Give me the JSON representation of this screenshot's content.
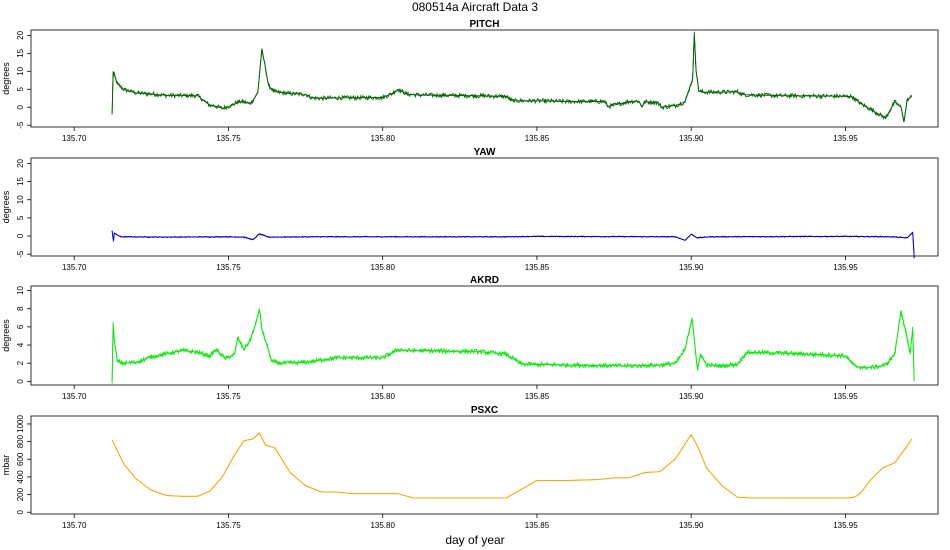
{
  "figure": {
    "title": "080514a    Aircraft Data 3",
    "xlabel": "day of year"
  },
  "chart_data": [
    {
      "type": "line",
      "title": "PITCH",
      "ylabel": "degrees",
      "color": "#006400",
      "xlim": [
        135.686,
        135.98
      ],
      "ylim": [
        -5.5,
        21.5
      ],
      "xticks": [
        135.7,
        135.75,
        135.8,
        135.85,
        135.9,
        135.95
      ],
      "xtick_labels": [
        "135.70",
        "135.75",
        "135.80",
        "135.85",
        "135.90",
        "135.95"
      ],
      "yticks": [
        -5,
        0,
        5,
        10,
        15,
        20
      ],
      "ytick_labels": [
        "-5",
        "0",
        "5",
        "10",
        "15",
        "20"
      ],
      "noise": 0.6,
      "series": [
        {
          "x": [
            135.7123,
            135.7126,
            135.713,
            135.714,
            135.716,
            135.718,
            135.72,
            135.725,
            135.73,
            135.74,
            135.744,
            135.745,
            135.748,
            135.751,
            135.753,
            135.755,
            135.757,
            135.758,
            135.7595,
            135.7608,
            135.7618,
            135.763,
            135.765,
            135.77,
            135.775,
            135.777,
            135.78,
            135.785,
            135.8,
            135.803,
            135.805,
            135.808,
            135.812,
            135.83,
            135.84,
            135.842,
            135.85,
            135.86,
            135.872,
            135.873,
            135.88,
            135.883,
            135.884,
            135.885,
            135.889,
            135.8905,
            135.895,
            135.898,
            135.9005,
            135.901,
            135.9016,
            135.9025,
            135.904,
            135.91,
            135.915,
            135.917,
            135.93,
            135.945,
            135.952,
            135.955,
            135.957,
            135.96,
            135.963,
            135.966,
            135.968,
            135.969,
            135.97,
            135.9715
          ],
          "y": [
            -2,
            10,
            9,
            6.5,
            5,
            4.5,
            4,
            3.7,
            3.3,
            3.2,
            0.5,
            0.5,
            -0.3,
            0.5,
            1.5,
            1.5,
            1,
            2,
            4,
            16,
            12,
            6,
            4.3,
            3.8,
            3.6,
            2.6,
            2.5,
            2.6,
            2.7,
            3.8,
            5,
            3.6,
            3.4,
            3.2,
            3,
            1.8,
            1.8,
            1.6,
            1.6,
            0.2,
            1.6,
            1.7,
            0.2,
            1.5,
            1.4,
            0,
            0.5,
            1.5,
            8,
            21,
            10,
            4.5,
            4.2,
            4.2,
            4.3,
            3.5,
            3.2,
            3.1,
            3,
            1,
            0,
            -1.5,
            -3,
            1.5,
            0,
            -4,
            2,
            3
          ]
        }
      ]
    },
    {
      "type": "line",
      "title": "YAW",
      "ylabel": "degrees",
      "color": "#0000cd",
      "xlim": [
        135.686,
        135.98
      ],
      "ylim": [
        -5.5,
        21.5
      ],
      "xticks": [
        135.7,
        135.75,
        135.8,
        135.85,
        135.9,
        135.95
      ],
      "xtick_labels": [
        "135.70",
        "135.75",
        "135.80",
        "135.85",
        "135.90",
        "135.95"
      ],
      "yticks": [
        -5,
        0,
        5,
        10,
        15,
        20
      ],
      "ytick_labels": [
        "-5",
        "0",
        "5",
        "10",
        "15",
        "20"
      ],
      "noise": 0.15,
      "series": [
        {
          "x": [
            135.7123,
            135.7127,
            135.713,
            135.715,
            135.73,
            135.75,
            135.755,
            135.758,
            135.76,
            135.763,
            135.78,
            135.84,
            135.85,
            135.895,
            135.898,
            135.9,
            135.902,
            135.906,
            135.95,
            135.965,
            135.97,
            135.9718,
            135.9723
          ],
          "y": [
            1.5,
            -1.5,
            0.8,
            -0.2,
            -0.3,
            -0.2,
            -0.3,
            -1,
            0.6,
            -0.3,
            -0.2,
            -0.2,
            -0.1,
            -0.2,
            -1.2,
            0.5,
            -0.5,
            -0.2,
            -0.1,
            -0.2,
            -0.5,
            1,
            -6
          ]
        }
      ]
    },
    {
      "type": "line",
      "title": "AKRD",
      "ylabel": "degrees",
      "color": "#00ee00",
      "xlim": [
        135.686,
        135.98
      ],
      "ylim": [
        -0.4,
        10.5
      ],
      "xticks": [
        135.7,
        135.75,
        135.8,
        135.85,
        135.9,
        135.95
      ],
      "xtick_labels": [
        "135.70",
        "135.75",
        "135.80",
        "135.85",
        "135.90",
        "135.95"
      ],
      "yticks": [
        0,
        2,
        4,
        6,
        8,
        10
      ],
      "ytick_labels": [
        "0",
        "2",
        "4",
        "6",
        "8",
        "10"
      ],
      "noise": 0.25,
      "series": [
        {
          "x": [
            135.7123,
            135.7126,
            135.713,
            135.714,
            135.716,
            135.72,
            135.725,
            135.735,
            135.74,
            135.744,
            135.746,
            135.749,
            135.752,
            135.753,
            135.755,
            135.757,
            135.759,
            135.76,
            135.761,
            135.7625,
            135.764,
            135.767,
            135.775,
            135.785,
            135.8,
            135.805,
            135.808,
            135.83,
            135.84,
            135.845,
            135.86,
            135.88,
            135.89,
            135.895,
            135.898,
            135.9003,
            135.9012,
            135.902,
            135.903,
            135.905,
            135.91,
            135.915,
            135.918,
            135.93,
            135.945,
            135.95,
            135.953,
            135.956,
            135.96,
            135.963,
            135.966,
            135.968,
            135.9695,
            135.971,
            135.9718,
            135.9723
          ],
          "y": [
            0,
            6.5,
            4.5,
            2.2,
            2,
            2.1,
            2.7,
            3.4,
            3.2,
            2.8,
            3.5,
            2.5,
            3,
            4.8,
            3.5,
            4.5,
            6.5,
            8,
            5.5,
            4,
            2.2,
            2,
            2.1,
            2.6,
            2.6,
            3.5,
            3.4,
            3.3,
            3,
            1.9,
            1.8,
            1.7,
            1.8,
            2,
            3.5,
            7,
            4,
            1.2,
            3,
            1.8,
            1.7,
            1.9,
            3.2,
            3.1,
            2.9,
            2.8,
            1.7,
            1.5,
            1.6,
            1.8,
            3,
            7.8,
            5.5,
            3,
            6,
            0
          ]
        }
      ]
    },
    {
      "type": "line",
      "title": "PSXC",
      "ylabel": "mbar",
      "color": "#ffa500",
      "xlim": [
        135.686,
        135.98
      ],
      "ylim": [
        -20,
        1090
      ],
      "xticks": [
        135.7,
        135.75,
        135.8,
        135.85,
        135.9,
        135.95
      ],
      "xtick_labels": [
        "135.70",
        "135.75",
        "135.80",
        "135.85",
        "135.90",
        "135.95"
      ],
      "yticks": [
        0,
        200,
        400,
        600,
        800,
        1000
      ],
      "ytick_labels": [
        "0",
        "200",
        "400",
        "600",
        "800",
        "1000"
      ],
      "noise": 0,
      "series": [
        {
          "x": [
            135.7123,
            135.716,
            135.72,
            135.725,
            135.73,
            135.735,
            135.74,
            135.744,
            135.748,
            135.752,
            135.755,
            135.758,
            135.76,
            135.762,
            135.765,
            135.77,
            135.775,
            135.78,
            135.785,
            135.79,
            135.8,
            135.805,
            135.81,
            135.82,
            135.83,
            135.84,
            135.845,
            135.85,
            135.86,
            135.87,
            135.875,
            135.88,
            135.885,
            135.89,
            135.895,
            135.9,
            135.902,
            135.905,
            135.91,
            135.915,
            135.92,
            135.93,
            135.94,
            135.95,
            135.953,
            135.955,
            135.958,
            135.962,
            135.966,
            135.97,
            135.9715
          ],
          "y": [
            820,
            550,
            380,
            250,
            190,
            180,
            180,
            240,
            400,
            650,
            810,
            830,
            900,
            760,
            730,
            450,
            300,
            230,
            230,
            210,
            210,
            210,
            160,
            160,
            160,
            160,
            260,
            360,
            360,
            370,
            390,
            390,
            450,
            460,
            610,
            880,
            750,
            500,
            300,
            170,
            160,
            160,
            160,
            160,
            170,
            220,
            360,
            500,
            560,
            750,
            830
          ]
        }
      ]
    }
  ]
}
